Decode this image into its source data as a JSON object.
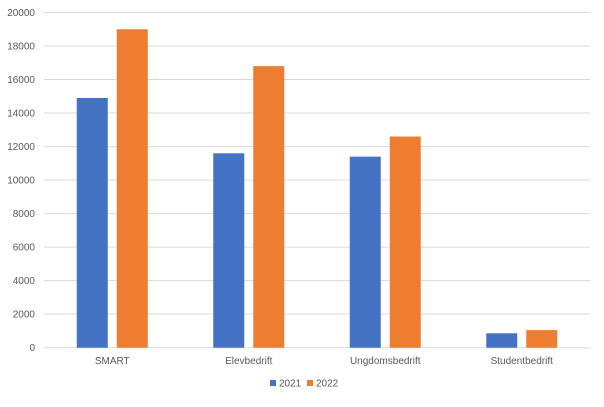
{
  "chart_data": {
    "type": "bar",
    "title": "",
    "xlabel": "",
    "ylabel": "",
    "categories": [
      "SMART",
      "Elevbedrift",
      "Ungdomsbedrift",
      "Studentbedrift"
    ],
    "series": [
      {
        "name": "2021",
        "color": "#4472C4",
        "values": [
          14900,
          11600,
          11400,
          860
        ]
      },
      {
        "name": "2022",
        "color": "#ED7D31",
        "values": [
          19000,
          16800,
          12600,
          1050
        ]
      }
    ],
    "ylim": [
      0,
      20000
    ],
    "yticks": [
      "0",
      "2000",
      "4000",
      "6000",
      "8000",
      "10000",
      "12000",
      "14000",
      "16000",
      "18000",
      "20000"
    ],
    "grid": true,
    "legend_position": "bottom"
  }
}
